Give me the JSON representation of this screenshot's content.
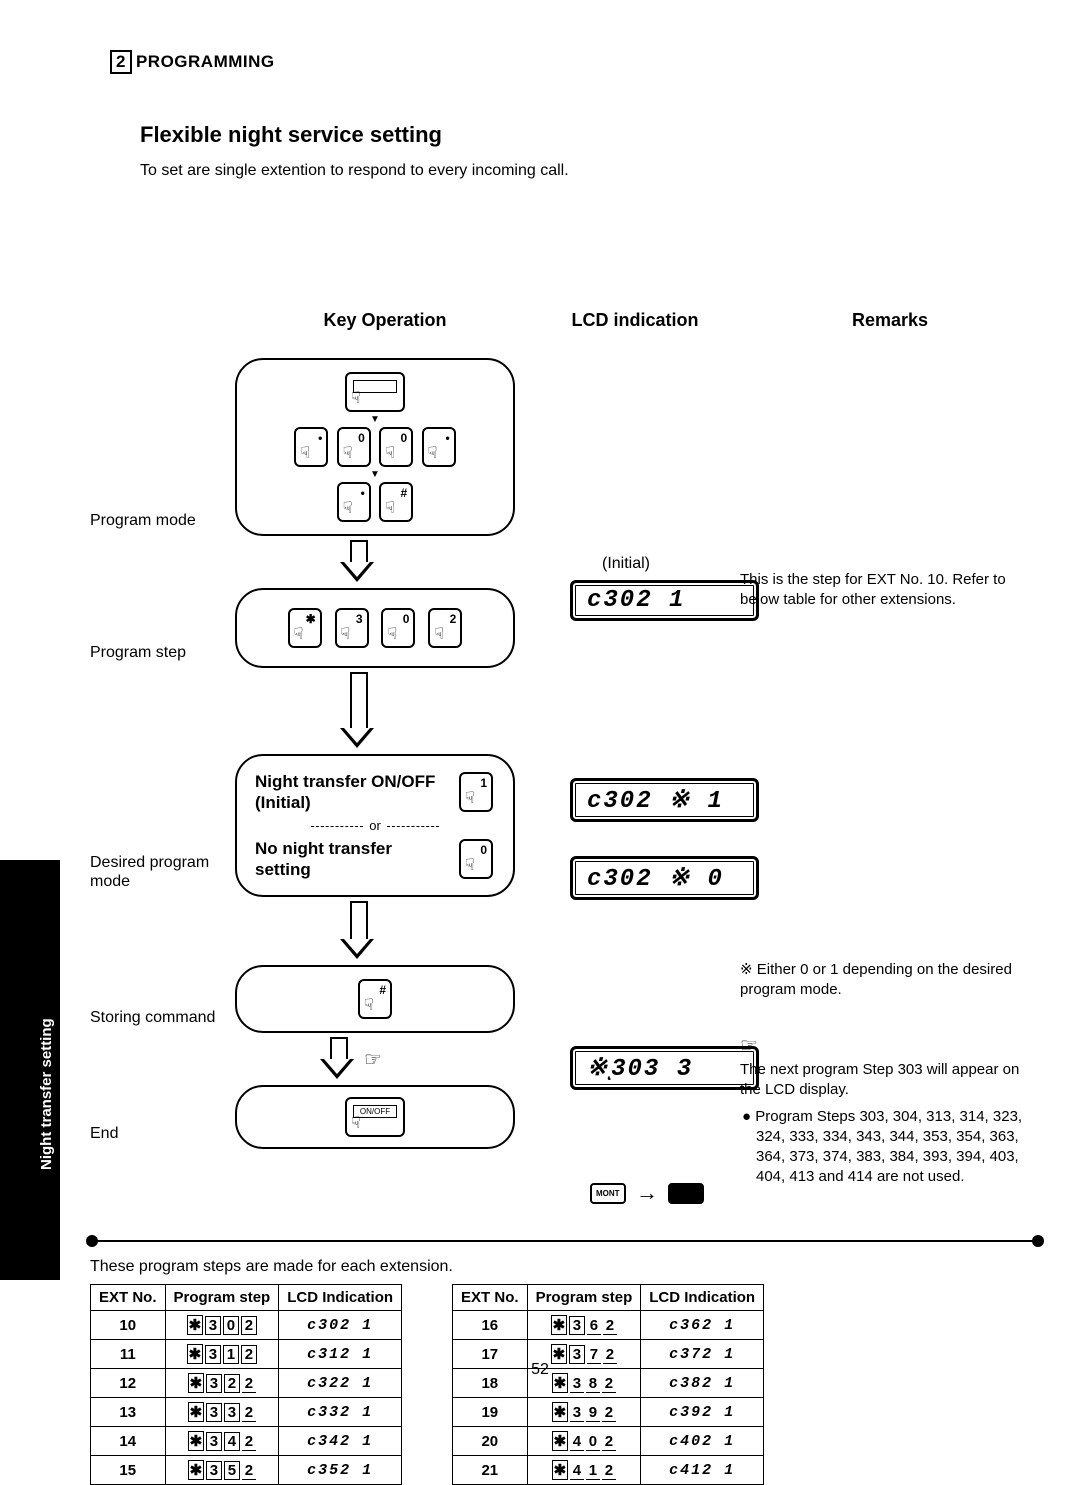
{
  "header": {
    "section_num": "2",
    "section_label": "PROGRAMMING"
  },
  "title": "Flexible  night  service  setting",
  "intro": "To set are single extention to respond to every incoming call.",
  "column_heads": {
    "key": "Key Operation",
    "lcd": "LCD indication",
    "remarks": "Remarks"
  },
  "side_tab": "Night transfer setting",
  "flow_labels": {
    "program_mode": "Program mode",
    "program_step": "Program step",
    "desired": "Desired program mode",
    "storing": "Storing command",
    "end": "End"
  },
  "step2": {
    "title_on": "Night transfer ON/OFF (Initial)",
    "or": "or",
    "title_off": "No night transfer setting"
  },
  "lcd_initial_label": "(Initial)",
  "lcd": {
    "step1": "c302  1",
    "step2a": "c302 ※ 1",
    "step2b": "c302 ※ 0",
    "step3": "※ͺ303  3"
  },
  "remarks": {
    "r1": "This is the step for EXT No. 10. Refer to below table for other extensions.",
    "r2": "※  Either 0 or 1 depending on the desired program mode.",
    "r3_intro": "The next program Step 303 will appear on the LCD display.",
    "r3_bullet": "Program Steps 303, 304, 313, 314, 323, 324, 333, 334, 343, 344, 353, 354, 363, 364, 373, 374, 383, 384, 393, 394, 403, 404, 413 and 414 are not used."
  },
  "caption": "These program steps are made for each extension.",
  "table_headers": {
    "ext": "EXT No.",
    "pstep": "Program step",
    "lcd": "LCD Indication"
  },
  "table_left": [
    {
      "ext": "10",
      "keys": [
        "✱",
        "3",
        "0",
        "2"
      ],
      "lcd": "c302  1",
      "boxed": 4
    },
    {
      "ext": "11",
      "keys": [
        "✱",
        "3",
        "1",
        "2"
      ],
      "lcd": "c312  1",
      "boxed": 4
    },
    {
      "ext": "12",
      "keys": [
        "✱",
        "3",
        "2",
        "2"
      ],
      "lcd": "c322  1",
      "boxed": 3
    },
    {
      "ext": "13",
      "keys": [
        "✱",
        "3",
        "3",
        "2"
      ],
      "lcd": "c332  1",
      "boxed": 3
    },
    {
      "ext": "14",
      "keys": [
        "✱",
        "3",
        "4",
        "2"
      ],
      "lcd": "c342  1",
      "boxed": 3
    },
    {
      "ext": "15",
      "keys": [
        "✱",
        "3",
        "5",
        "2"
      ],
      "lcd": "c352  1",
      "boxed": 3
    }
  ],
  "table_right": [
    {
      "ext": "16",
      "keys": [
        "✱",
        "3",
        "6",
        "2"
      ],
      "lcd": "c362  1",
      "boxed": 2
    },
    {
      "ext": "17",
      "keys": [
        "✱",
        "3",
        "7",
        "2"
      ],
      "lcd": "c372  1",
      "boxed": 2
    },
    {
      "ext": "18",
      "keys": [
        "✱",
        "3",
        "8",
        "2"
      ],
      "lcd": "c382  1",
      "boxed": 1
    },
    {
      "ext": "19",
      "keys": [
        "✱",
        "3",
        "9",
        "2"
      ],
      "lcd": "c392  1",
      "boxed": 1
    },
    {
      "ext": "20",
      "keys": [
        "✱",
        "4",
        "0",
        "2"
      ],
      "lcd": "c402  1",
      "boxed": 1
    },
    {
      "ext": "21",
      "keys": [
        "✱",
        "4",
        "1",
        "2"
      ],
      "lcd": "c412  1",
      "boxed": 1
    }
  ],
  "page_num": "52",
  "mont_label": "MONT"
}
